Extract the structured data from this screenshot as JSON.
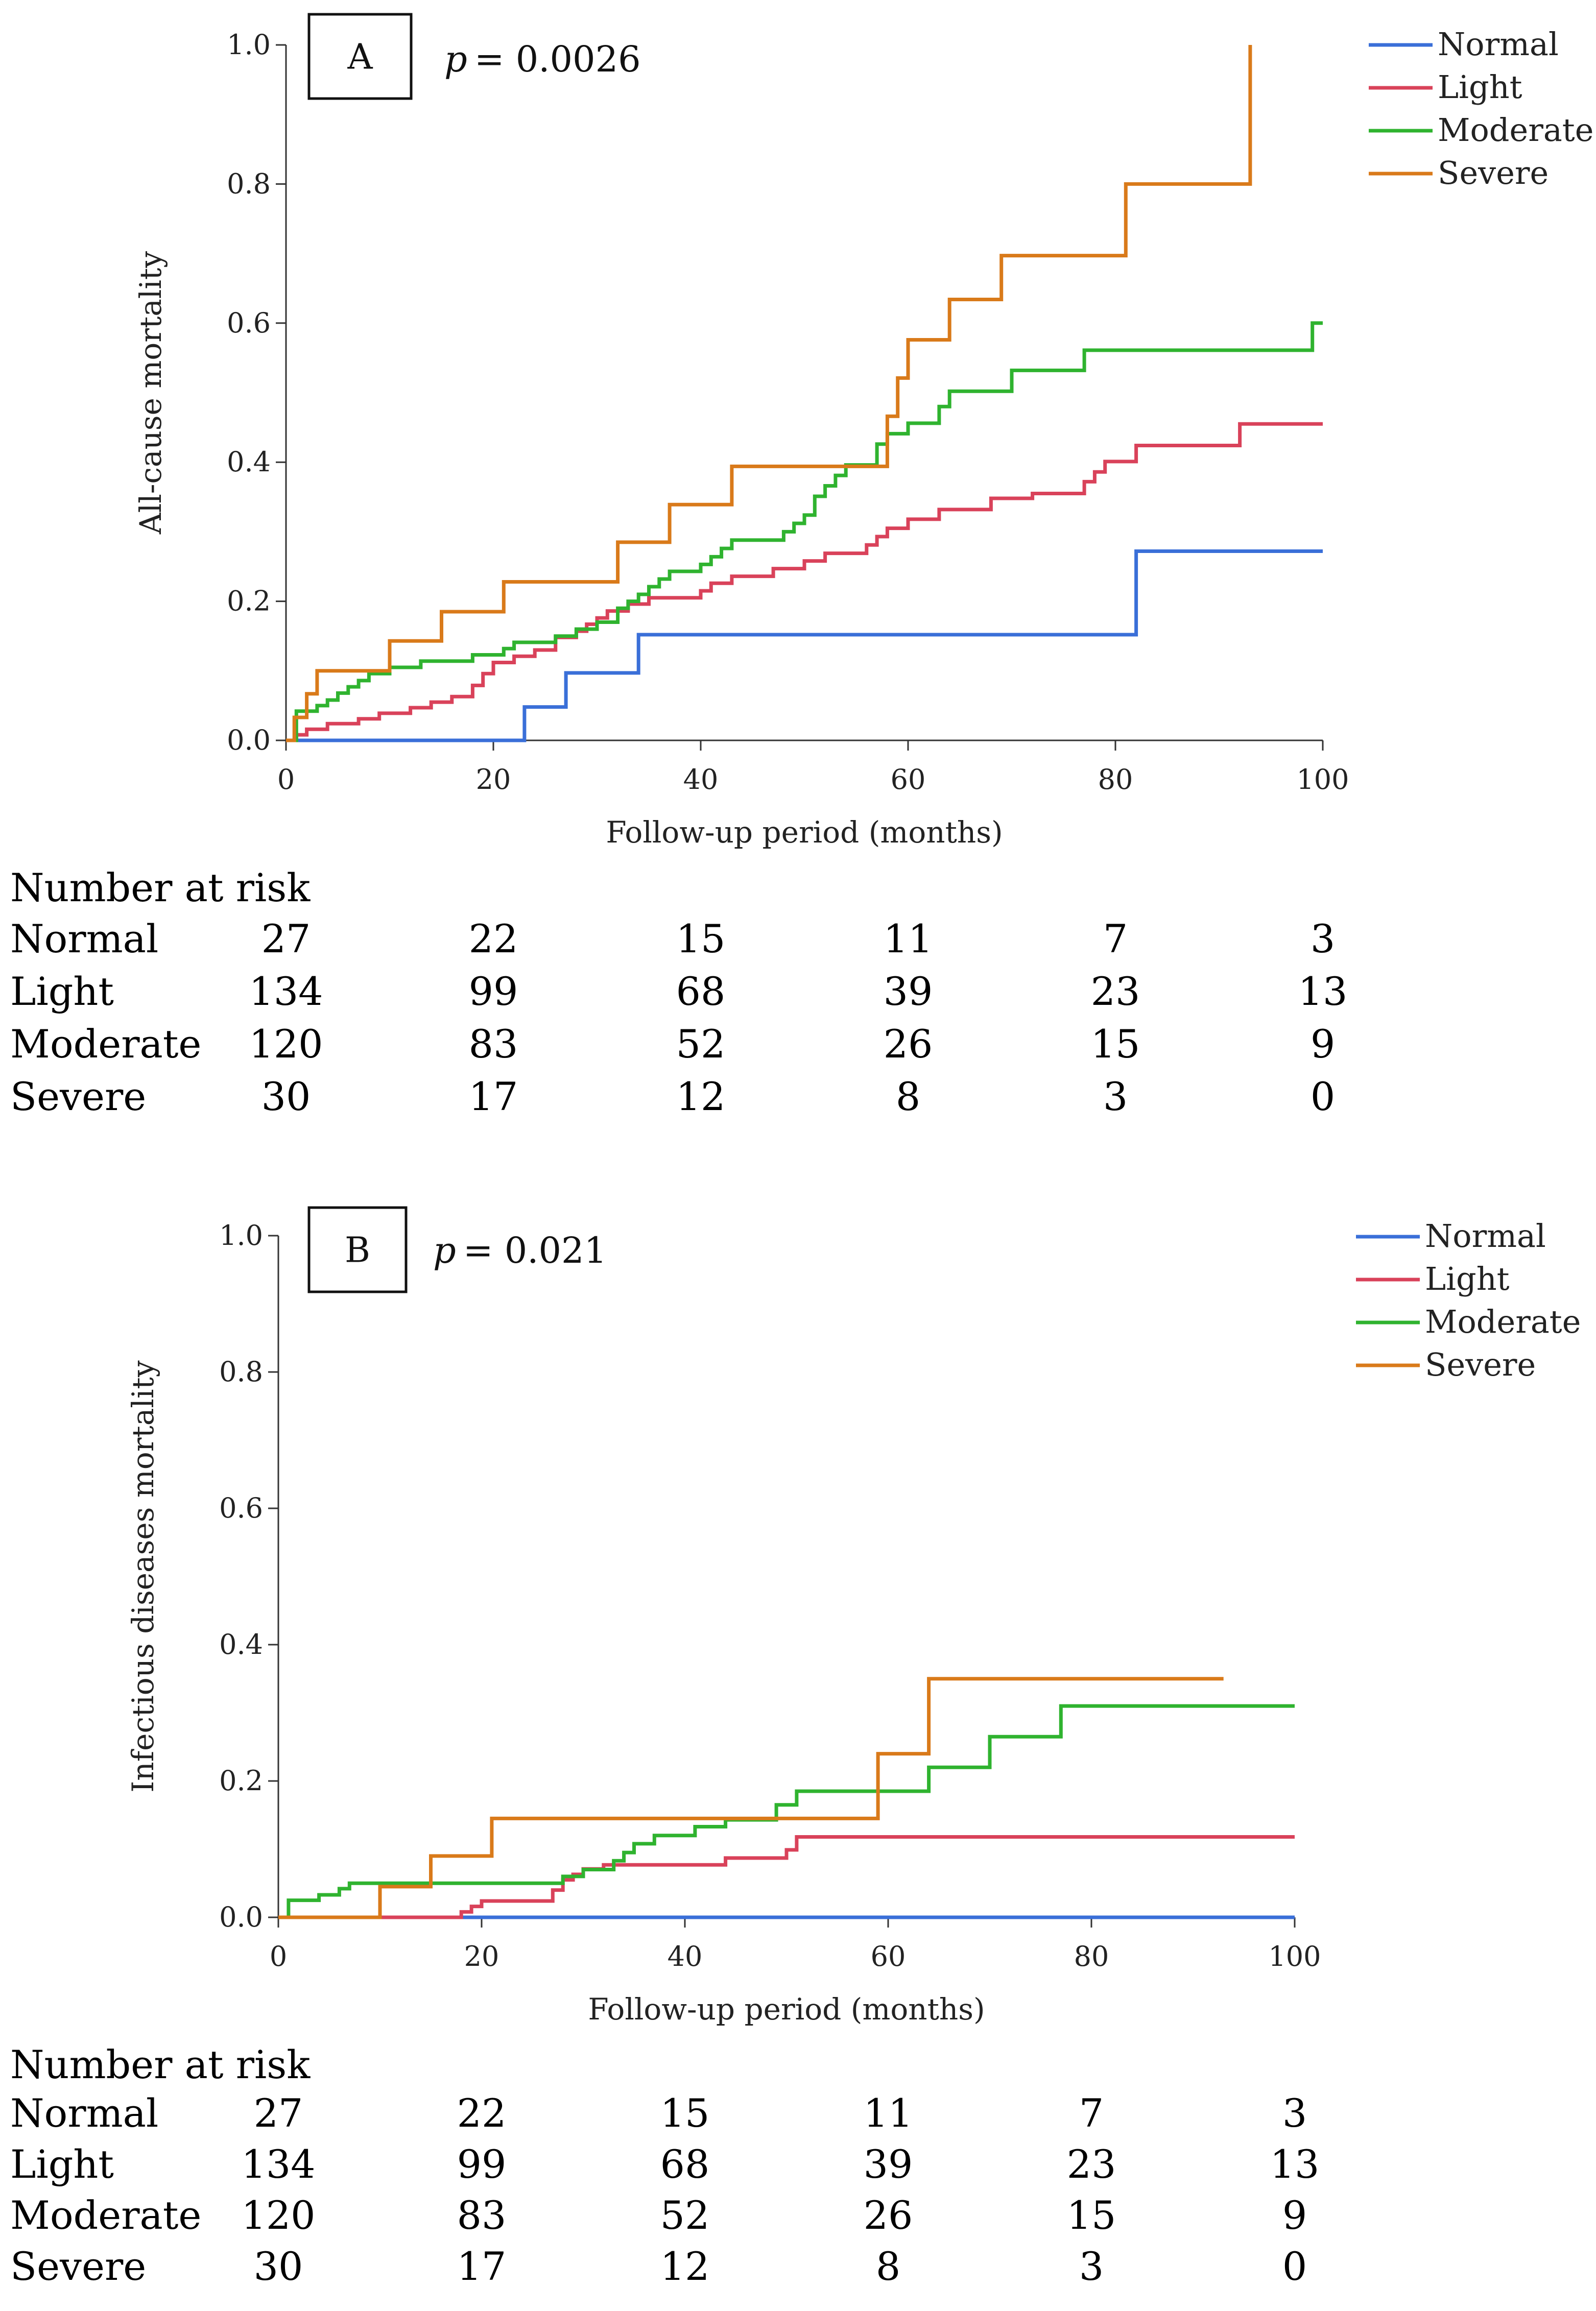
{
  "colors": {
    "Normal": "#3a6fd8",
    "Light": "#d9425a",
    "Moderate": "#2fb32f",
    "Severe": "#d97a1a",
    "axis": "#333333"
  },
  "chart_data": [
    {
      "type": "line",
      "panel_label": "A",
      "p_prefix": "p",
      "p_value": "= 0.0026",
      "xlabel": "Follow-up period (months)",
      "ylabel": "All-cause mortality",
      "xlim": [
        0,
        100
      ],
      "ylim": [
        0,
        1.0
      ],
      "x_ticks": [
        "0",
        "20",
        "40",
        "60",
        "80",
        "100"
      ],
      "y_ticks": [
        "0.0",
        "0.2",
        "0.4",
        "0.6",
        "0.8",
        "1.0"
      ],
      "legend": [
        "Normal",
        "Light",
        "Moderate",
        "Severe"
      ],
      "series": [
        {
          "name": "Normal",
          "steps": [
            [
              0,
              0
            ],
            [
              23,
              0.048
            ],
            [
              27,
              0.097
            ],
            [
              34,
              0.152
            ],
            [
              82,
              0.272
            ],
            [
              100,
              0.272
            ]
          ]
        },
        {
          "name": "Light",
          "steps": [
            [
              0,
              0
            ],
            [
              1,
              0.008
            ],
            [
              2,
              0.016
            ],
            [
              4,
              0.024
            ],
            [
              7,
              0.031
            ],
            [
              9,
              0.039
            ],
            [
              12,
              0.047
            ],
            [
              14,
              0.055
            ],
            [
              16,
              0.063
            ],
            [
              18,
              0.079
            ],
            [
              19,
              0.096
            ],
            [
              20,
              0.112
            ],
            [
              22,
              0.121
            ],
            [
              24,
              0.13
            ],
            [
              26,
              0.148
            ],
            [
              28,
              0.157
            ],
            [
              29,
              0.167
            ],
            [
              30,
              0.176
            ],
            [
              31,
              0.186
            ],
            [
              33,
              0.196
            ],
            [
              35,
              0.205
            ],
            [
              38,
              0.205
            ],
            [
              40,
              0.215
            ],
            [
              41,
              0.226
            ],
            [
              43,
              0.236
            ],
            [
              47,
              0.247
            ],
            [
              50,
              0.258
            ],
            [
              52,
              0.269
            ],
            [
              56,
              0.281
            ],
            [
              57,
              0.293
            ],
            [
              58,
              0.305
            ],
            [
              60,
              0.318
            ],
            [
              63,
              0.332
            ],
            [
              68,
              0.348
            ],
            [
              72,
              0.355
            ],
            [
              77,
              0.372
            ],
            [
              78,
              0.386
            ],
            [
              79,
              0.401
            ],
            [
              82,
              0.424
            ],
            [
              92,
              0.455
            ],
            [
              100,
              0.455
            ]
          ]
        },
        {
          "name": "Moderate",
          "steps": [
            [
              0,
              0
            ],
            [
              1,
              0.042
            ],
            [
              3,
              0.05
            ],
            [
              4,
              0.058
            ],
            [
              5,
              0.068
            ],
            [
              6,
              0.077
            ],
            [
              7,
              0.086
            ],
            [
              8,
              0.096
            ],
            [
              10,
              0.105
            ],
            [
              13,
              0.114
            ],
            [
              18,
              0.123
            ],
            [
              21,
              0.132
            ],
            [
              22,
              0.141
            ],
            [
              25,
              0.141
            ],
            [
              26,
              0.15
            ],
            [
              28,
              0.16
            ],
            [
              30,
              0.17
            ],
            [
              32,
              0.19
            ],
            [
              33,
              0.2
            ],
            [
              34,
              0.21
            ],
            [
              35,
              0.221
            ],
            [
              36,
              0.232
            ],
            [
              37,
              0.243
            ],
            [
              40,
              0.253
            ],
            [
              41,
              0.264
            ],
            [
              42,
              0.276
            ],
            [
              43,
              0.288
            ],
            [
              48,
              0.3
            ],
            [
              49,
              0.312
            ],
            [
              50,
              0.324
            ],
            [
              51,
              0.351
            ],
            [
              52,
              0.366
            ],
            [
              53,
              0.381
            ],
            [
              54,
              0.396
            ],
            [
              57,
              0.426
            ],
            [
              58,
              0.441
            ],
            [
              60,
              0.456
            ],
            [
              63,
              0.48
            ],
            [
              64,
              0.502
            ],
            [
              70,
              0.532
            ],
            [
              77,
              0.561
            ],
            [
              99,
              0.6
            ],
            [
              100,
              0.6
            ]
          ]
        },
        {
          "name": "Severe",
          "steps": [
            [
              0,
              0
            ],
            [
              0.8,
              0.033
            ],
            [
              2,
              0.067
            ],
            [
              3,
              0.1
            ],
            [
              10,
              0.143
            ],
            [
              15,
              0.185
            ],
            [
              21,
              0.228
            ],
            [
              32,
              0.285
            ],
            [
              37,
              0.339
            ],
            [
              43,
              0.394
            ],
            [
              58,
              0.466
            ],
            [
              59,
              0.521
            ],
            [
              60,
              0.576
            ],
            [
              64,
              0.634
            ],
            [
              69,
              0.697
            ],
            [
              81,
              0.8
            ],
            [
              93,
              1.0
            ]
          ]
        }
      ],
      "number_at_risk": {
        "title": "Number at risk",
        "rows": [
          {
            "label": "Normal",
            "values": [
              "27",
              "22",
              "15",
              "11",
              "7",
              "3"
            ]
          },
          {
            "label": "Light",
            "values": [
              "134",
              "99",
              "68",
              "39",
              "23",
              "13"
            ]
          },
          {
            "label": "Moderate",
            "values": [
              "120",
              "83",
              "52",
              "26",
              "15",
              "9"
            ]
          },
          {
            "label": "Severe",
            "values": [
              "30",
              "17",
              "12",
              "8",
              "3",
              "0"
            ]
          }
        ]
      }
    },
    {
      "type": "line",
      "panel_label": "B",
      "p_prefix": "p",
      "p_value": "= 0.021",
      "xlabel": "Follow-up period (months)",
      "ylabel": "Infectious diseases mortality",
      "xlim": [
        0,
        100
      ],
      "ylim": [
        0,
        1.0
      ],
      "x_ticks": [
        "0",
        "20",
        "40",
        "60",
        "80",
        "100"
      ],
      "y_ticks": [
        "0.0",
        "0.2",
        "0.4",
        "0.6",
        "0.8",
        "1.0"
      ],
      "legend": [
        "Normal",
        "Light",
        "Moderate",
        "Severe"
      ],
      "series": [
        {
          "name": "Normal",
          "steps": [
            [
              0,
              0
            ],
            [
              100,
              0
            ]
          ]
        },
        {
          "name": "Light",
          "steps": [
            [
              0,
              0
            ],
            [
              18,
              0.008
            ],
            [
              19,
              0.016
            ],
            [
              20,
              0.024
            ],
            [
              27,
              0.04
            ],
            [
              28,
              0.055
            ],
            [
              29,
              0.063
            ],
            [
              30,
              0.071
            ],
            [
              32,
              0.077
            ],
            [
              44,
              0.087
            ],
            [
              50,
              0.099
            ],
            [
              51,
              0.118
            ],
            [
              100,
              0.118
            ]
          ]
        },
        {
          "name": "Moderate",
          "steps": [
            [
              0,
              0
            ],
            [
              1,
              0.025
            ],
            [
              4,
              0.033
            ],
            [
              6,
              0.042
            ],
            [
              7,
              0.05
            ],
            [
              13,
              0.05
            ],
            [
              28,
              0.06
            ],
            [
              30,
              0.07
            ],
            [
              33,
              0.083
            ],
            [
              34,
              0.095
            ],
            [
              35,
              0.108
            ],
            [
              37,
              0.12
            ],
            [
              41,
              0.133
            ],
            [
              44,
              0.143
            ],
            [
              49,
              0.165
            ],
            [
              51,
              0.185
            ],
            [
              64,
              0.22
            ],
            [
              70,
              0.265
            ],
            [
              77,
              0.31
            ],
            [
              100,
              0.31
            ]
          ]
        },
        {
          "name": "Severe",
          "steps": [
            [
              0,
              0
            ],
            [
              10,
              0.045
            ],
            [
              15,
              0.09
            ],
            [
              21,
              0.145
            ],
            [
              59,
              0.24
            ],
            [
              64,
              0.35
            ],
            [
              93,
              0.35
            ]
          ]
        }
      ],
      "number_at_risk": {
        "title": "Number at risk",
        "rows": [
          {
            "label": "Normal",
            "values": [
              "27",
              "22",
              "15",
              "11",
              "7",
              "3"
            ]
          },
          {
            "label": "Light",
            "values": [
              "134",
              "99",
              "68",
              "39",
              "23",
              "13"
            ]
          },
          {
            "label": "Moderate",
            "values": [
              "120",
              "83",
              "52",
              "26",
              "15",
              "9"
            ]
          },
          {
            "label": "Severe",
            "values": [
              "30",
              "17",
              "12",
              "8",
              "3",
              "0"
            ]
          }
        ]
      }
    }
  ]
}
